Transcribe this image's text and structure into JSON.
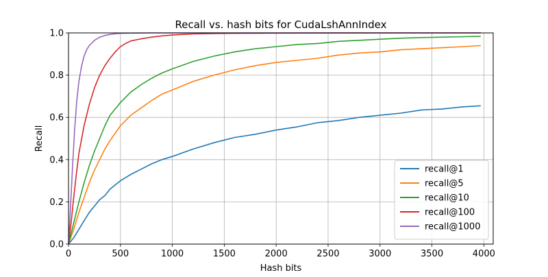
{
  "chart_data": {
    "type": "line",
    "title": "Recall vs. hash bits for CudaLshAnnIndex",
    "xlabel": "Hash bits",
    "ylabel": "Recall",
    "xlim": [
      0,
      4090
    ],
    "ylim": [
      0,
      1.0
    ],
    "xticks": [
      0,
      500,
      1000,
      1500,
      2000,
      2500,
      3000,
      3500,
      4000
    ],
    "yticks": [
      0.0,
      0.2,
      0.4,
      0.6,
      0.8,
      1.0
    ],
    "xtick_labels": [
      "0",
      "500",
      "1000",
      "1500",
      "2000",
      "2500",
      "3000",
      "3500",
      "4000"
    ],
    "ytick_labels": [
      "0.0",
      "0.2",
      "0.4",
      "0.6",
      "0.8",
      "1.0"
    ],
    "grid": true,
    "legend_position": "lower-right",
    "series": [
      {
        "name": "recall@1",
        "color": "#1f77b4",
        "x": [
          0,
          50,
          100,
          150,
          200,
          250,
          300,
          350,
          400,
          500,
          600,
          700,
          800,
          900,
          1000,
          1200,
          1400,
          1600,
          1800,
          2000,
          2200,
          2400,
          2600,
          2800,
          3000,
          3200,
          3400,
          3600,
          3800,
          3970
        ],
        "y": [
          0,
          0.03,
          0.07,
          0.11,
          0.15,
          0.18,
          0.21,
          0.23,
          0.26,
          0.3,
          0.33,
          0.355,
          0.38,
          0.4,
          0.415,
          0.45,
          0.48,
          0.505,
          0.52,
          0.54,
          0.555,
          0.575,
          0.585,
          0.6,
          0.61,
          0.62,
          0.635,
          0.64,
          0.65,
          0.655
        ]
      },
      {
        "name": "recall@5",
        "color": "#ff7f0e",
        "x": [
          0,
          50,
          100,
          150,
          200,
          250,
          300,
          350,
          400,
          500,
          600,
          700,
          800,
          900,
          1000,
          1200,
          1400,
          1600,
          1800,
          2000,
          2200,
          2400,
          2600,
          2800,
          3000,
          3200,
          3400,
          3600,
          3800,
          3970
        ],
        "y": [
          0,
          0.07,
          0.15,
          0.22,
          0.29,
          0.35,
          0.4,
          0.45,
          0.49,
          0.56,
          0.61,
          0.645,
          0.68,
          0.71,
          0.73,
          0.77,
          0.8,
          0.825,
          0.845,
          0.86,
          0.87,
          0.88,
          0.895,
          0.905,
          0.91,
          0.92,
          0.925,
          0.93,
          0.935,
          0.94
        ]
      },
      {
        "name": "recall@10",
        "color": "#2ca02c",
        "x": [
          0,
          50,
          100,
          150,
          200,
          250,
          300,
          350,
          400,
          500,
          600,
          700,
          800,
          900,
          1000,
          1200,
          1400,
          1600,
          1800,
          2000,
          2200,
          2400,
          2600,
          2800,
          3000,
          3200,
          3400,
          3600,
          3800,
          3970
        ],
        "y": [
          0,
          0.1,
          0.2,
          0.29,
          0.37,
          0.44,
          0.5,
          0.56,
          0.61,
          0.67,
          0.72,
          0.755,
          0.785,
          0.81,
          0.83,
          0.865,
          0.89,
          0.91,
          0.925,
          0.935,
          0.945,
          0.95,
          0.96,
          0.965,
          0.97,
          0.975,
          0.978,
          0.98,
          0.982,
          0.984
        ]
      },
      {
        "name": "recall@100",
        "color": "#d62728",
        "x": [
          0,
          25,
          50,
          75,
          100,
          150,
          200,
          250,
          300,
          350,
          400,
          450,
          500,
          550,
          600,
          700,
          800,
          900,
          1000,
          1100,
          1200,
          1400,
          1600,
          2000,
          3000,
          3970
        ],
        "y": [
          0,
          0.1,
          0.22,
          0.33,
          0.43,
          0.56,
          0.66,
          0.74,
          0.8,
          0.845,
          0.88,
          0.91,
          0.935,
          0.95,
          0.962,
          0.972,
          0.98,
          0.986,
          0.99,
          0.993,
          0.995,
          0.997,
          0.998,
          0.999,
          1.0,
          1.0
        ]
      },
      {
        "name": "recall@1000",
        "color": "#9467bd",
        "x": [
          0,
          20,
          40,
          60,
          80,
          100,
          125,
          150,
          175,
          200,
          250,
          300,
          350,
          400,
          450,
          500,
          600,
          800,
          1000,
          2000,
          3970
        ],
        "y": [
          0,
          0.18,
          0.38,
          0.55,
          0.68,
          0.77,
          0.84,
          0.89,
          0.92,
          0.94,
          0.965,
          0.98,
          0.988,
          0.993,
          0.996,
          0.998,
          0.999,
          1.0,
          1.0,
          1.0,
          1.0
        ]
      }
    ]
  }
}
